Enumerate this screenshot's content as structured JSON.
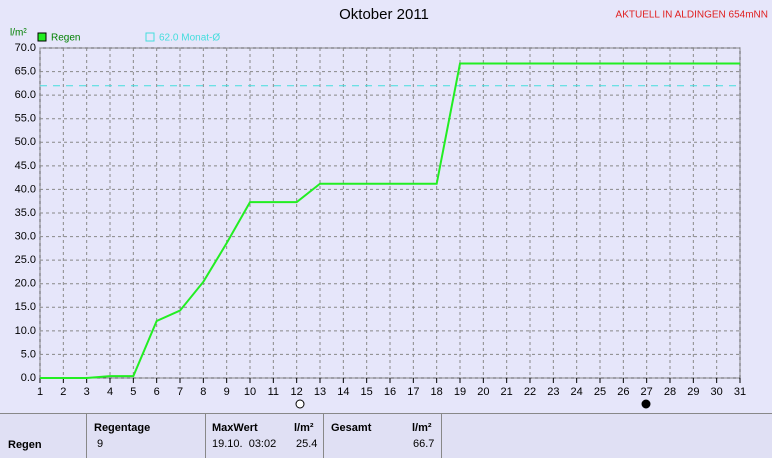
{
  "chart_data": {
    "type": "line",
    "title": "Oktober 2011",
    "corner_label": "AKTUELL IN ALDINGEN 654mNN",
    "y_label": "l/m²",
    "x": [
      1,
      2,
      3,
      4,
      5,
      6,
      7,
      8,
      9,
      10,
      11,
      12,
      13,
      14,
      15,
      16,
      17,
      18,
      19,
      20,
      21,
      22,
      23,
      24,
      25,
      26,
      27,
      28,
      29,
      30,
      31
    ],
    "series": [
      {
        "name": "Regen",
        "color": "#22ee22",
        "values": [
          0,
          0,
          0,
          0.4,
          0.4,
          12.1,
          14.3,
          20.4,
          28.6,
          37.3,
          37.3,
          37.3,
          41.2,
          41.2,
          41.2,
          41.2,
          41.2,
          41.2,
          66.7,
          66.7,
          66.7,
          66.7,
          66.7,
          66.7,
          66.7,
          66.7,
          66.7,
          66.7,
          66.7,
          66.7,
          66.7
        ]
      }
    ],
    "reference_line": {
      "value": 62,
      "label": "62.0 Monat-Ø",
      "color": "#44dddd"
    },
    "xlim": [
      1,
      31
    ],
    "xticks": [
      1,
      2,
      3,
      4,
      5,
      6,
      7,
      8,
      9,
      10,
      11,
      12,
      13,
      14,
      15,
      16,
      17,
      18,
      19,
      20,
      21,
      22,
      23,
      24,
      25,
      26,
      27,
      28,
      29,
      30,
      31
    ],
    "ylim": [
      0,
      70
    ],
    "yticks": [
      {
        "value": 0,
        "label": "0.0"
      },
      {
        "value": 5,
        "label": "5.0"
      },
      {
        "value": 10,
        "label": "10.0"
      },
      {
        "value": 15,
        "label": "15.0"
      },
      {
        "value": 20,
        "label": "20.0"
      },
      {
        "value": 25,
        "label": "25.0"
      },
      {
        "value": 30,
        "label": "30.0"
      },
      {
        "value": 35,
        "label": "35.0"
      },
      {
        "value": 40,
        "label": "40.0"
      },
      {
        "value": 45,
        "label": "45.0"
      },
      {
        "value": 50,
        "label": "50.0"
      },
      {
        "value": 55,
        "label": "55.0"
      },
      {
        "value": 60,
        "label": "60.0"
      },
      {
        "value": 65,
        "label": "65.0"
      },
      {
        "value": 70,
        "label": "70.0"
      }
    ],
    "grid": true
  },
  "table": {
    "header": [
      "Regentage",
      "MaxWert",
      "l/m²",
      "Gesamt",
      "l/m²"
    ],
    "rows": [
      [
        "Regen",
        "9",
        "19.10.  03:02",
        "25.4",
        "66.7"
      ]
    ]
  }
}
